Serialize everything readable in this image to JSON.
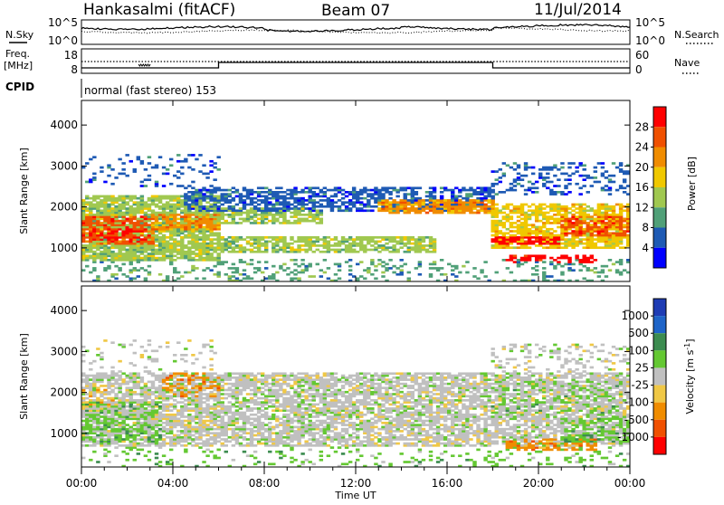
{
  "header": {
    "station": "Hankasalmi (fitACF)",
    "beam": "Beam 07",
    "date": "11/Jul/2014"
  },
  "noise_panel": {
    "left_label": "N.Sky",
    "right_label": "N.Search",
    "left_ticks": [
      "10^5",
      "10^0"
    ],
    "right_ticks": [
      "10^5",
      "10^0"
    ]
  },
  "freq_panel": {
    "left_label": "Freq.",
    "left_unit": "[MHz]",
    "left_ticks": [
      "18",
      "8"
    ],
    "right_label": "Nave",
    "right_ticks": [
      "60",
      "0"
    ],
    "cpid_label": "CPID",
    "cpid_text": "normal (fast stereo) 153"
  },
  "chart_data": [
    {
      "type": "heatmap",
      "name": "power",
      "ylabel": "Slant Range [km]",
      "xlabel": "",
      "ylim": [
        180,
        4600
      ],
      "yticks": [
        "1000",
        "2000",
        "3000",
        "4000"
      ],
      "colorbar": {
        "label": "Power [dB]",
        "ticks": [
          "4",
          "8",
          "12",
          "16",
          "20",
          "24",
          "28"
        ],
        "colors": [
          "#0000ff",
          "#1e5ab4",
          "#50a078",
          "#a0c850",
          "#f0c800",
          "#f08c00",
          "#f05000",
          "#ff0000"
        ]
      },
      "bands": [
        {
          "t0": 0.0,
          "t1": 6.0,
          "r0": 700,
          "r1": 2300,
          "level": 3,
          "density": 0.8
        },
        {
          "t0": 0.0,
          "t1": 3.2,
          "r0": 1100,
          "r1": 1800,
          "level": 6,
          "density": 0.7
        },
        {
          "t0": 0.4,
          "t1": 2.8,
          "r0": 1200,
          "r1": 1500,
          "level": 7,
          "density": 0.5
        },
        {
          "t0": 3.0,
          "t1": 6.0,
          "r0": 1450,
          "r1": 1850,
          "level": 5,
          "density": 0.7
        },
        {
          "t0": 6.0,
          "t1": 15.5,
          "r0": 900,
          "r1": 1300,
          "level": 3,
          "density": 0.7
        },
        {
          "t0": 6.0,
          "t1": 10.5,
          "r0": 1600,
          "r1": 2000,
          "level": 3,
          "density": 0.7
        },
        {
          "t0": 4.5,
          "t1": 18.0,
          "r0": 1900,
          "r1": 2500,
          "level": 1,
          "density": 0.6
        },
        {
          "t0": 13.0,
          "t1": 18.0,
          "r0": 1850,
          "r1": 2200,
          "level": 5,
          "density": 0.75
        },
        {
          "t0": 18.0,
          "t1": 24.0,
          "r0": 1000,
          "r1": 2100,
          "level": 4,
          "density": 0.7
        },
        {
          "t0": 18.0,
          "t1": 21.0,
          "r0": 1100,
          "r1": 1300,
          "level": 7,
          "density": 0.7
        },
        {
          "t0": 21.0,
          "t1": 24.0,
          "r0": 1300,
          "r1": 1800,
          "level": 6,
          "density": 0.6
        },
        {
          "t0": 18.5,
          "t1": 22.5,
          "r0": 620,
          "r1": 850,
          "level": 7,
          "density": 0.5
        },
        {
          "t0": 18.0,
          "t1": 24.0,
          "r0": 2300,
          "r1": 3100,
          "level": 1,
          "density": 0.3
        },
        {
          "t0": 0.0,
          "t1": 24.0,
          "r0": 200,
          "r1": 750,
          "level": 2,
          "density": 0.2
        },
        {
          "t0": 0.0,
          "t1": 6.0,
          "r0": 2500,
          "r1": 3300,
          "level": 1,
          "density": 0.12
        }
      ]
    },
    {
      "type": "heatmap",
      "name": "velocity",
      "ylabel": "Slant Range [km]",
      "xlabel": "Time UT",
      "ylim": [
        180,
        4600
      ],
      "yticks": [
        "1000",
        "2000",
        "3000",
        "4000"
      ],
      "xticks": [
        "00:00",
        "04:00",
        "08:00",
        "12:00",
        "16:00",
        "20:00",
        "00:00"
      ],
      "colorbar": {
        "label": "Velocity [m s^-1]",
        "ticks": [
          "1000",
          "500",
          "100",
          "25",
          "-25",
          "-100",
          "-500",
          "-1000"
        ],
        "colors": [
          "#1e3cb4",
          "#1e64c8",
          "#3c8c50",
          "#64c832",
          "#c0c0c0",
          "#f0c846",
          "#f08c00",
          "#f05000",
          "#ff0000"
        ]
      },
      "bands": [
        {
          "t0": 0.0,
          "t1": 24.0,
          "r0": 700,
          "r1": 2500,
          "level": 4,
          "density": 0.7
        },
        {
          "t0": 0.0,
          "t1": 3.5,
          "r0": 800,
          "r1": 1800,
          "level": 3,
          "density": 0.55
        },
        {
          "t0": 0.0,
          "t1": 1.5,
          "r0": 1500,
          "r1": 2200,
          "level": 5,
          "density": 0.3
        },
        {
          "t0": 3.5,
          "t1": 6.0,
          "r0": 1900,
          "r1": 2500,
          "level": 6,
          "density": 0.35
        },
        {
          "t0": 18.5,
          "t1": 22.5,
          "r0": 600,
          "r1": 900,
          "level": 6,
          "density": 0.6
        },
        {
          "t0": 21.0,
          "t1": 24.0,
          "r0": 800,
          "r1": 1400,
          "level": 3,
          "density": 0.5
        },
        {
          "t0": 18.0,
          "t1": 24.0,
          "r0": 1400,
          "r1": 2300,
          "level": 3,
          "density": 0.15
        },
        {
          "t0": 0.0,
          "t1": 24.0,
          "r0": 200,
          "r1": 700,
          "level": 3,
          "density": 0.12
        },
        {
          "t0": 0.0,
          "t1": 6.0,
          "r0": 2500,
          "r1": 3300,
          "level": 4,
          "density": 0.12
        },
        {
          "t0": 18.0,
          "t1": 24.0,
          "r0": 2500,
          "r1": 3200,
          "level": 4,
          "density": 0.2
        }
      ]
    }
  ]
}
